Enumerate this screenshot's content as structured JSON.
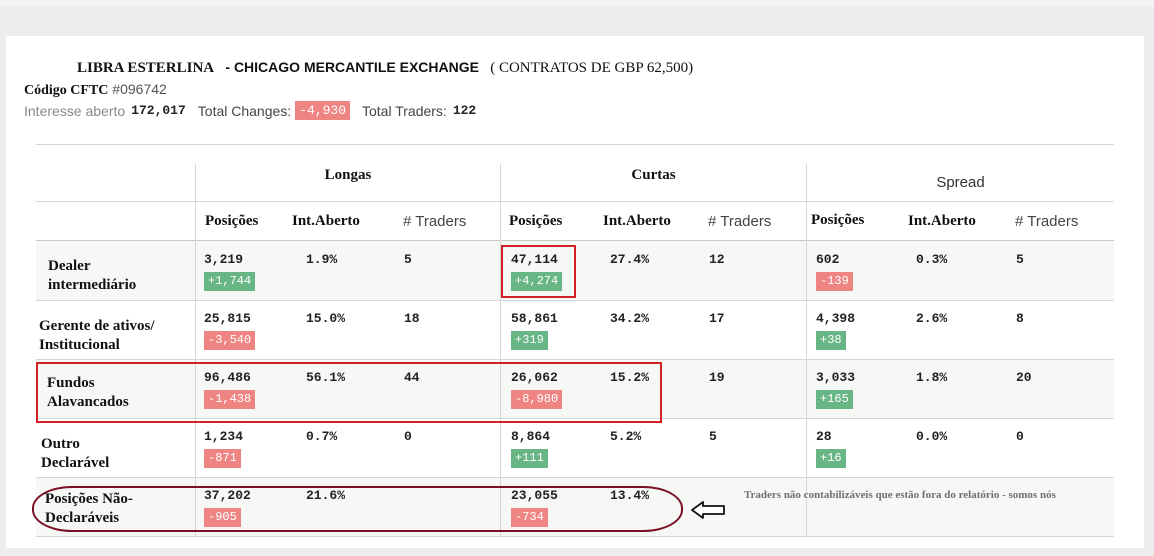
{
  "header": {
    "currency": "LIBRA ESTERLINA",
    "exchange": "- CHICAGO MERCANTILE EXCHANGE",
    "contracts": "( CONTRATOS DE GBP 62,500)",
    "cftc_label": "Código CFTC",
    "cftc_code": "#096742",
    "open_interest_label": "Interesse aberto",
    "open_interest_value": "172,017",
    "total_changes_label": "Total Changes:",
    "total_changes_value": "-4,930",
    "total_traders_label": "Total Traders:",
    "total_traders_value": "122"
  },
  "groups": {
    "longs": "Longas",
    "shorts": "Curtas",
    "spread": "Spread"
  },
  "columns": {
    "positions": "Posições",
    "open_interest": "Int.Aberto",
    "traders": "# Traders",
    "spread_positions": "Posições",
    "spread_open_interest": "Int.Aberto",
    "spread_traders": "# Traders"
  },
  "rows": [
    {
      "label_l1": "Dealer",
      "label_l2": "intermediário",
      "long": {
        "pos": "3,219",
        "chg": "+1,744",
        "oi": "1.9%",
        "tr": "5"
      },
      "short": {
        "pos": "47,114",
        "chg": "+4,274",
        "oi": "27.4%",
        "tr": "12"
      },
      "spread": {
        "pos": "602",
        "chg": "-139",
        "oi": "0.3%",
        "tr": "5"
      }
    },
    {
      "label_l1": "Gerente de ativos/",
      "label_l2": "Institucional",
      "long": {
        "pos": "25,815",
        "chg": "-3,540",
        "oi": "15.0%",
        "tr": "18"
      },
      "short": {
        "pos": "58,861",
        "chg": "+319",
        "oi": "34.2%",
        "tr": "17"
      },
      "spread": {
        "pos": "4,398",
        "chg": "+38",
        "oi": "2.6%",
        "tr": "8"
      }
    },
    {
      "label_l1": "Fundos",
      "label_l2": "Alavancados",
      "long": {
        "pos": "96,486",
        "chg": "-1,438",
        "oi": "56.1%",
        "tr": "44"
      },
      "short": {
        "pos": "26,062",
        "chg": "-8,980",
        "oi": "15.2%",
        "tr": "19"
      },
      "spread": {
        "pos": "3,033",
        "chg": "+165",
        "oi": "1.8%",
        "tr": "20"
      }
    },
    {
      "label_l1": "Outro",
      "label_l2": "Declarável",
      "long": {
        "pos": "1,234",
        "chg": "-871",
        "oi": "0.7%",
        "tr": "0"
      },
      "short": {
        "pos": "8,864",
        "chg": "+111",
        "oi": "5.2%",
        "tr": "5"
      },
      "spread": {
        "pos": "28",
        "chg": "+16",
        "oi": "0.0%",
        "tr": "0"
      }
    },
    {
      "label_l1": "Posições Não-",
      "label_l2": "Declaráveis",
      "long": {
        "pos": "37,202",
        "chg": "-905",
        "oi": "21.6%",
        "tr": ""
      },
      "short": {
        "pos": "23,055",
        "chg": "-734",
        "oi": "13.4%",
        "tr": ""
      },
      "spread": {
        "pos": "",
        "chg": "",
        "oi": "",
        "tr": ""
      }
    }
  ],
  "annotation": {
    "note": "Traders não contabilizáveis que estão fora do relatório - somos nós",
    "arrow_icon": "left-arrow-icon"
  },
  "colors": {
    "positive": "#68b585",
    "negative": "#ee8583",
    "highlight_box": "#d41f25",
    "ellipse": "#7a1024"
  }
}
